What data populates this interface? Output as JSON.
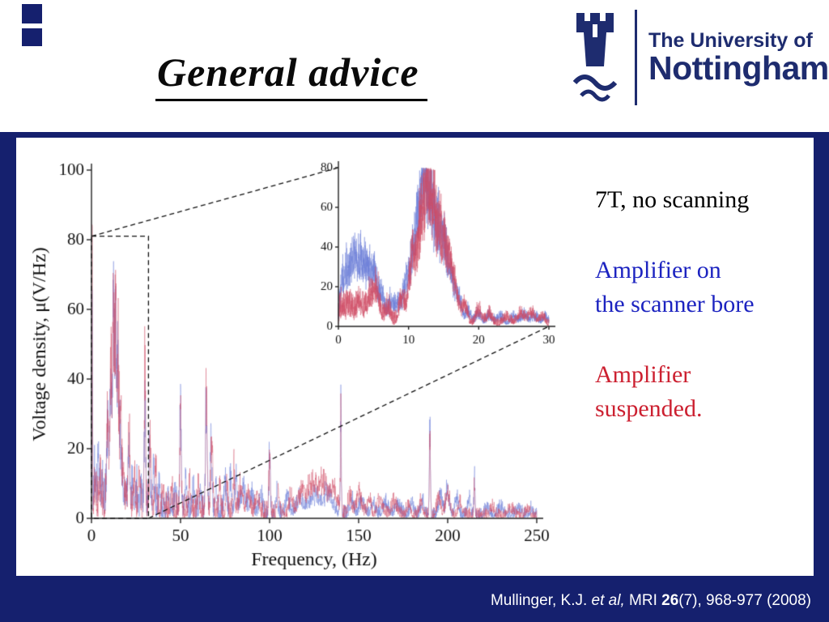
{
  "slide": {
    "title": "General advice",
    "logo": {
      "line1": "The University of",
      "line2": "Nottingham"
    },
    "annotations": [
      {
        "text": "7T, no scanning",
        "color": "#000000"
      },
      {
        "text": "Amplifier on\nthe scanner bore",
        "color": "#1c23c0"
      },
      {
        "text": "Amplifier\nsuspended.",
        "color": "#cc2030"
      }
    ],
    "citation": {
      "author": "Mullinger, K.J. ",
      "etal": "et al,",
      "journal": " MRI ",
      "volume": "26",
      "rest": "(7), 968-977 (2008)"
    }
  },
  "chart_data": {
    "type": "line",
    "note": "7T, no scanning",
    "main": {
      "xlabel": "Frequency, (Hz)",
      "ylabel": "Voltage density, μ(V/Hz)",
      "xlim": [
        0,
        250
      ],
      "ylim": [
        0,
        100
      ],
      "x_ticks": [
        0,
        50,
        100,
        150,
        200,
        250
      ],
      "y_ticks": [
        0,
        20,
        40,
        60,
        80,
        100
      ],
      "noise": {
        "n0": 5,
        "tau": 60,
        "floor": 1.3
      },
      "series": [
        {
          "name": "Amplifier on the scanner bore",
          "color": "#6b7fd7",
          "peaks": [
            [
              0.4,
              97,
              0.18
            ],
            [
              2,
              12,
              0.5
            ],
            [
              4,
              16,
              0.6
            ],
            [
              6,
              10,
              0.5
            ],
            [
              9,
              25,
              0.6
            ],
            [
              10.8,
              48,
              0.6
            ],
            [
              12.3,
              70,
              0.5
            ],
            [
              13.4,
              66,
              0.45
            ],
            [
              14.6,
              52,
              0.5
            ],
            [
              15.8,
              32,
              0.5
            ],
            [
              17,
              18,
              0.5
            ],
            [
              19,
              12,
              0.5
            ],
            [
              21,
              26,
              0.5
            ],
            [
              23,
              10,
              0.5
            ],
            [
              25,
              8,
              0.6
            ],
            [
              28,
              8,
              0.5
            ],
            [
              30,
              36,
              0.4
            ],
            [
              32.5,
              20,
              0.5
            ],
            [
              35,
              16,
              0.5
            ],
            [
              38,
              10,
              0.5
            ],
            [
              43,
              10,
              0.5
            ],
            [
              47,
              8,
              0.5
            ],
            [
              50,
              38,
              0.45
            ],
            [
              53,
              10,
              0.5
            ],
            [
              57,
              12,
              0.5
            ],
            [
              61,
              10,
              0.5
            ],
            [
              64.5,
              42,
              0.5
            ],
            [
              67,
              26,
              0.5
            ],
            [
              70,
              10,
              0.5
            ],
            [
              75,
              12,
              0.6
            ],
            [
              78,
              14,
              0.5
            ],
            [
              81,
              12,
              0.6
            ],
            [
              85,
              9,
              1.5
            ],
            [
              90,
              7,
              1
            ],
            [
              95,
              8,
              0.8
            ],
            [
              100,
              24,
              0.4
            ],
            [
              104,
              8,
              0.6
            ],
            [
              110,
              6,
              1
            ],
            [
              117,
              6,
              2
            ],
            [
              125,
              7,
              3
            ],
            [
              133,
              8,
              2.5
            ],
            [
              140,
              40,
              0.3
            ],
            [
              146,
              6,
              1
            ],
            [
              152,
              6,
              1.5
            ],
            [
              158,
              5,
              1
            ],
            [
              165,
              5,
              1.5
            ],
            [
              172,
              4,
              1.5
            ],
            [
              180,
              4,
              1
            ],
            [
              186,
              5,
              1
            ],
            [
              190,
              32,
              0.3
            ],
            [
              196,
              8,
              1
            ],
            [
              200,
              10,
              1
            ],
            [
              205,
              6,
              1
            ],
            [
              212,
              6,
              0.8
            ],
            [
              215,
              15,
              0.3
            ],
            [
              222,
              3,
              1
            ],
            [
              230,
              3,
              1.5
            ],
            [
              240,
              2.5,
              1.5
            ],
            [
              247,
              2.5,
              1
            ]
          ]
        },
        {
          "name": "Amplifier suspended.",
          "color": "#cf4a63",
          "peaks": [
            [
              0.4,
              90,
              0.18
            ],
            [
              2,
              8,
              0.5
            ],
            [
              5,
              10,
              0.6
            ],
            [
              9,
              30,
              0.6
            ],
            [
              11,
              58,
              0.6
            ],
            [
              12.5,
              72,
              0.5
            ],
            [
              13.7,
              70,
              0.45
            ],
            [
              15,
              55,
              0.5
            ],
            [
              16.5,
              35,
              0.5
            ],
            [
              18,
              15,
              0.5
            ],
            [
              21,
              30,
              0.5
            ],
            [
              24,
              10,
              0.5
            ],
            [
              27,
              12,
              0.5
            ],
            [
              30,
              52,
              0.38
            ],
            [
              33,
              24,
              0.5
            ],
            [
              36,
              14,
              0.5
            ],
            [
              40,
              9,
              0.5
            ],
            [
              45,
              8,
              0.5
            ],
            [
              50,
              34,
              0.4
            ],
            [
              55,
              10,
              0.5
            ],
            [
              60,
              9,
              0.5
            ],
            [
              64.5,
              46,
              0.5
            ],
            [
              67.5,
              30,
              0.5
            ],
            [
              72,
              10,
              0.5
            ],
            [
              76,
              13,
              0.5
            ],
            [
              80,
              16,
              0.5
            ],
            [
              84,
              10,
              1
            ],
            [
              88,
              8,
              1
            ],
            [
              93,
              7,
              1
            ],
            [
              100,
              22,
              0.4
            ],
            [
              105,
              9,
              0.6
            ],
            [
              112,
              7,
              1
            ],
            [
              118,
              9,
              2
            ],
            [
              124,
              11,
              2.5
            ],
            [
              130,
              12,
              2.5
            ],
            [
              136,
              9,
              2
            ],
            [
              140,
              36,
              0.3
            ],
            [
              145,
              7,
              1
            ],
            [
              150,
              8,
              1.5
            ],
            [
              156,
              6,
              1
            ],
            [
              162,
              5,
              1.5
            ],
            [
              170,
              5,
              1.5
            ],
            [
              178,
              4,
              1
            ],
            [
              185,
              5,
              1
            ],
            [
              190,
              28,
              0.3
            ],
            [
              195,
              7,
              1
            ],
            [
              200,
              9,
              1.2
            ],
            [
              207,
              5,
              1
            ],
            [
              215,
              11,
              0.3
            ],
            [
              225,
              3,
              1
            ],
            [
              235,
              3,
              1.5
            ],
            [
              245,
              2.5,
              1
            ]
          ]
        }
      ]
    },
    "inset": {
      "xlim": [
        0,
        30
      ],
      "ylim": [
        0,
        80
      ],
      "x_ticks": [
        0,
        10,
        20,
        30
      ],
      "y_ticks": [
        0,
        20,
        40,
        60,
        80
      ],
      "noise": {
        "n0": 5,
        "tau": 8,
        "floor": 1.6
      },
      "series": [
        {
          "name": "Amplifier on the scanner bore",
          "color": "#6b7fd7",
          "peaks": [
            [
              0.5,
              18,
              0.3
            ],
            [
              1.2,
              28,
              0.4
            ],
            [
              2.2,
              38,
              0.5
            ],
            [
              3.2,
              30,
              0.5
            ],
            [
              4.2,
              33,
              0.5
            ],
            [
              5.2,
              26,
              0.4
            ],
            [
              6.2,
              18,
              0.4
            ],
            [
              7.5,
              14,
              0.4
            ],
            [
              8.5,
              12,
              0.4
            ],
            [
              9.5,
              20,
              0.4
            ],
            [
              10.5,
              40,
              0.5
            ],
            [
              11.5,
              62,
              0.5
            ],
            [
              12.3,
              74,
              0.45
            ],
            [
              13.2,
              70,
              0.45
            ],
            [
              14.2,
              58,
              0.5
            ],
            [
              15.2,
              42,
              0.5
            ],
            [
              16.2,
              26,
              0.5
            ],
            [
              17.2,
              15,
              0.4
            ],
            [
              18.5,
              8,
              0.4
            ],
            [
              20,
              7,
              0.4
            ],
            [
              21.5,
              6,
              0.4
            ],
            [
              23,
              5,
              0.5
            ],
            [
              25,
              5,
              0.5
            ],
            [
              26.5,
              6,
              0.5
            ],
            [
              28,
              5,
              0.5
            ],
            [
              29.5,
              5,
              0.4
            ]
          ]
        },
        {
          "name": "Amplifier suspended.",
          "color": "#cf4a63",
          "peaks": [
            [
              0.5,
              8,
              0.3
            ],
            [
              1.5,
              10,
              0.4
            ],
            [
              3,
              12,
              0.5
            ],
            [
              4.5,
              16,
              0.5
            ],
            [
              5.5,
              20,
              0.4
            ],
            [
              7,
              10,
              0.4
            ],
            [
              9,
              16,
              0.4
            ],
            [
              10.5,
              45,
              0.5
            ],
            [
              11.8,
              68,
              0.5
            ],
            [
              12.7,
              75,
              0.45
            ],
            [
              13.6,
              68,
              0.45
            ],
            [
              14.6,
              55,
              0.5
            ],
            [
              15.6,
              40,
              0.5
            ],
            [
              16.6,
              25,
              0.5
            ],
            [
              18,
              12,
              0.4
            ],
            [
              20,
              10,
              0.4
            ],
            [
              21.5,
              7,
              0.4
            ],
            [
              24,
              5,
              0.5
            ],
            [
              26,
              7,
              0.5
            ],
            [
              27.5,
              8,
              0.5
            ],
            [
              29,
              6,
              0.4
            ]
          ]
        }
      ]
    },
    "zoom_region": {
      "x": [
        0,
        32
      ],
      "y": [
        0,
        81
      ]
    }
  }
}
